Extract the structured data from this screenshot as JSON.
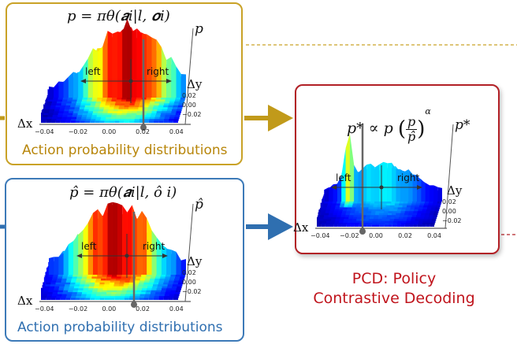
{
  "top_panel": {
    "formula": "p = πθ(𝒂i|l, 𝒐i)",
    "caption": "Action probability distributions",
    "axis_p": "p",
    "axis_dy": "Δy",
    "axis_dx": "Δx",
    "left_label": "left",
    "right_label": "right",
    "x_ticks": [
      "−0.04",
      "−0.02",
      "0.00",
      "0.02",
      "0.04"
    ],
    "y_ticks": [
      "0.02",
      "0.00",
      "−0.02"
    ]
  },
  "bottom_panel": {
    "formula": "p̂ = πθ(𝒂i|l, ô i)",
    "caption": "Action probability distributions",
    "axis_p": "p̂",
    "axis_dy": "Δy",
    "axis_dx": "Δx",
    "left_label": "left",
    "right_label": "right",
    "x_ticks": [
      "−0.04",
      "−0.02",
      "0.00",
      "0.02",
      "0.04"
    ],
    "y_ticks": [
      "0.02",
      "0.00",
      "−0.02"
    ]
  },
  "right_panel": {
    "formula_lhs": "p* ∝ p",
    "formula_num": "p",
    "formula_den": "p̂",
    "formula_exp": "α",
    "axis_p": "p*",
    "axis_dy": "Δy",
    "axis_dx": "Δx",
    "left_label": "left",
    "right_label": "right",
    "x_ticks": [
      "−0.04",
      "−0.02",
      "0.00",
      "0.02",
      "0.04"
    ],
    "y_ticks": [
      "0.02",
      "0.00",
      "−0.02"
    ]
  },
  "pcd_title": {
    "line1": "PCD: Policy",
    "line2": "Contrastive Decoding"
  },
  "colors": {
    "gold": "#c9a227",
    "blue": "#3d7ab8",
    "red": "#b22026",
    "arrow_gold": "#c19a1a",
    "arrow_blue": "#2f6fb0"
  }
}
